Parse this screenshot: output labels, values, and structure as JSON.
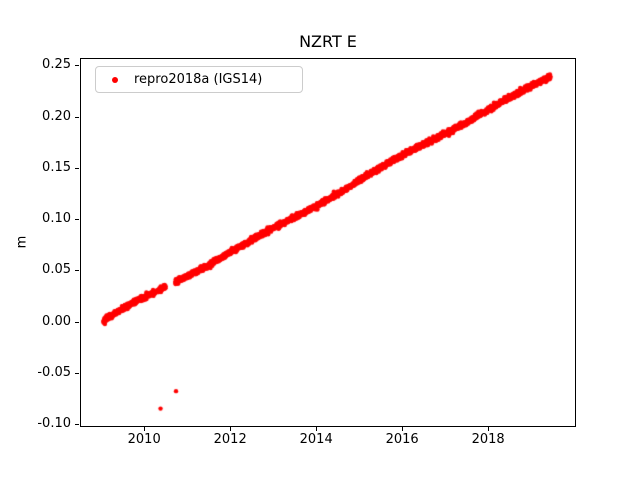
{
  "chart_data": {
    "type": "scatter",
    "title": "NZRT E",
    "xlabel": "",
    "ylabel": "m",
    "xlim": [
      2008.53,
      2020.02
    ],
    "ylim": [
      -0.102,
      0.2563
    ],
    "xticks": [
      2010,
      2012,
      2014,
      2016,
      2018
    ],
    "xtick_labels": [
      "2010",
      "2012",
      "2014",
      "2016",
      "2018"
    ],
    "yticks": [
      -0.1,
      -0.05,
      0.0,
      0.05,
      0.1,
      0.15,
      0.2,
      0.25
    ],
    "ytick_labels": [
      "-0.10",
      "-0.05",
      "0.00",
      "0.05",
      "0.10",
      "0.15",
      "0.20",
      "0.25"
    ],
    "grid": false,
    "legend_position": "upper left",
    "series": [
      {
        "name": "repro2018a (IGS14)",
        "color": "#ff0000",
        "marker": "dot",
        "marker_radius_px": 2.2,
        "trend": {
          "x_start": 2009.05,
          "x_end": 2019.45,
          "y_start": 0.0,
          "y_end": 0.24,
          "slope_m_per_yr": 0.02308,
          "scatter_std_m": 0.0013,
          "points_per_year": 250,
          "gaps": [
            [
              2010.5,
              2010.72
            ]
          ]
        },
        "outliers": [
          [
            2010.38,
            -0.085
          ],
          [
            2010.74,
            -0.068
          ]
        ]
      }
    ]
  }
}
